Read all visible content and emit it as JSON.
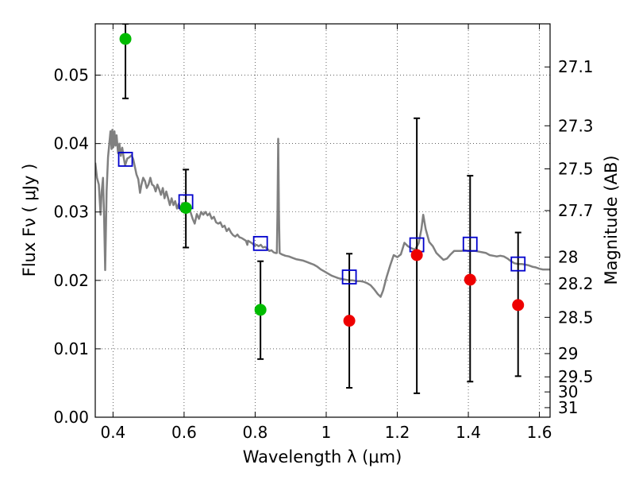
{
  "chart_data": {
    "type": "scatter",
    "xlabel": "Wavelength  λ (μm)",
    "ylabel": "Flux  Fν  ( μJy )",
    "ylabel_right": "Magnitude (AB)",
    "xlim": [
      0.35,
      1.63
    ],
    "ylim": [
      0.0,
      0.0575
    ],
    "grid": true,
    "x_ticks": [
      0.4,
      0.6,
      0.8,
      1.0,
      1.2,
      1.4,
      1.6
    ],
    "x_tick_labels": [
      "0.4",
      "0.6",
      "0.8",
      "1",
      "1.2",
      "1.4",
      "1.6"
    ],
    "y_ticks": [
      0.0,
      0.01,
      0.02,
      0.03,
      0.04,
      0.05
    ],
    "y_tick_labels": [
      "0.00",
      "0.01",
      "0.02",
      "0.03",
      "0.04",
      "0.05"
    ],
    "right_ticks": [
      {
        "label": "27.1",
        "flux": 0.0512
      },
      {
        "label": "27.3",
        "flux": 0.0426
      },
      {
        "label": "27.5",
        "flux": 0.0363
      },
      {
        "label": "27.7",
        "flux": 0.0302
      },
      {
        "label": "28",
        "flux": 0.0234
      },
      {
        "label": "28.2",
        "flux": 0.0195
      },
      {
        "label": "28.5",
        "flux": 0.0146
      },
      {
        "label": "29",
        "flux": 0.0093
      },
      {
        "label": "29.5",
        "flux": 0.0059
      },
      {
        "label": "30",
        "flux": 0.0037
      },
      {
        "label": "31",
        "flux": 0.0014
      }
    ],
    "model_spectrum": {
      "color": "#808080",
      "points": [
        [
          0.35,
          0.0372
        ],
        [
          0.355,
          0.035
        ],
        [
          0.36,
          0.034
        ],
        [
          0.365,
          0.0296
        ],
        [
          0.368,
          0.033
        ],
        [
          0.372,
          0.035
        ],
        [
          0.375,
          0.029
        ],
        [
          0.378,
          0.0215
        ],
        [
          0.382,
          0.033
        ],
        [
          0.386,
          0.038
        ],
        [
          0.39,
          0.0402
        ],
        [
          0.393,
          0.0418
        ],
        [
          0.396,
          0.0392
        ],
        [
          0.398,
          0.042
        ],
        [
          0.401,
          0.0395
        ],
        [
          0.404,
          0.0418
        ],
        [
          0.407,
          0.0397
        ],
        [
          0.41,
          0.0412
        ],
        [
          0.414,
          0.0386
        ],
        [
          0.418,
          0.04
        ],
        [
          0.422,
          0.0382
        ],
        [
          0.426,
          0.0394
        ],
        [
          0.43,
          0.038
        ],
        [
          0.434,
          0.0368
        ],
        [
          0.44,
          0.0378
        ],
        [
          0.446,
          0.038
        ],
        [
          0.452,
          0.0383
        ],
        [
          0.457,
          0.0377
        ],
        [
          0.462,
          0.0365
        ],
        [
          0.466,
          0.0355
        ],
        [
          0.471,
          0.0348
        ],
        [
          0.476,
          0.0328
        ],
        [
          0.48,
          0.034
        ],
        [
          0.485,
          0.035
        ],
        [
          0.49,
          0.0345
        ],
        [
          0.495,
          0.0335
        ],
        [
          0.5,
          0.034
        ],
        [
          0.505,
          0.035
        ],
        [
          0.51,
          0.034
        ],
        [
          0.515,
          0.0338
        ],
        [
          0.52,
          0.033
        ],
        [
          0.525,
          0.034
        ],
        [
          0.53,
          0.0333
        ],
        [
          0.535,
          0.0325
        ],
        [
          0.54,
          0.0335
        ],
        [
          0.545,
          0.032
        ],
        [
          0.55,
          0.033
        ],
        [
          0.555,
          0.032
        ],
        [
          0.56,
          0.031
        ],
        [
          0.565,
          0.032
        ],
        [
          0.57,
          0.031
        ],
        [
          0.575,
          0.0316
        ],
        [
          0.58,
          0.0305
        ],
        [
          0.585,
          0.0312
        ],
        [
          0.59,
          0.0303
        ],
        [
          0.595,
          0.0313
        ],
        [
          0.6,
          0.0307
        ],
        [
          0.606,
          0.0312
        ],
        [
          0.612,
          0.0304
        ],
        [
          0.618,
          0.03
        ],
        [
          0.624,
          0.029
        ],
        [
          0.63,
          0.0283
        ],
        [
          0.636,
          0.0297
        ],
        [
          0.642,
          0.029
        ],
        [
          0.648,
          0.03
        ],
        [
          0.654,
          0.0296
        ],
        [
          0.66,
          0.03
        ],
        [
          0.666,
          0.0295
        ],
        [
          0.672,
          0.0298
        ],
        [
          0.678,
          0.029
        ],
        [
          0.684,
          0.0293
        ],
        [
          0.69,
          0.0285
        ],
        [
          0.696,
          0.0283
        ],
        [
          0.702,
          0.0285
        ],
        [
          0.708,
          0.0278
        ],
        [
          0.714,
          0.028
        ],
        [
          0.72,
          0.0272
        ],
        [
          0.726,
          0.0276
        ],
        [
          0.732,
          0.027
        ],
        [
          0.738,
          0.0266
        ],
        [
          0.744,
          0.0264
        ],
        [
          0.75,
          0.0267
        ],
        [
          0.756,
          0.0263
        ],
        [
          0.762,
          0.0262
        ],
        [
          0.768,
          0.026
        ],
        [
          0.774,
          0.0258
        ],
        [
          0.778,
          0.0252
        ],
        [
          0.78,
          0.0258
        ],
        [
          0.786,
          0.0256
        ],
        [
          0.792,
          0.0254
        ],
        [
          0.798,
          0.0251
        ],
        [
          0.804,
          0.0252
        ],
        [
          0.81,
          0.025
        ],
        [
          0.816,
          0.0252
        ],
        [
          0.822,
          0.0248
        ],
        [
          0.828,
          0.0249
        ],
        [
          0.834,
          0.0246
        ],
        [
          0.84,
          0.0243
        ],
        [
          0.846,
          0.0244
        ],
        [
          0.852,
          0.0241
        ],
        [
          0.858,
          0.024
        ],
        [
          0.861,
          0.024
        ],
        [
          0.863,
          0.03
        ],
        [
          0.865,
          0.0407
        ],
        [
          0.867,
          0.03
        ],
        [
          0.869,
          0.024
        ],
        [
          0.875,
          0.0238
        ],
        [
          0.885,
          0.0236
        ],
        [
          0.895,
          0.0235
        ],
        [
          0.905,
          0.0233
        ],
        [
          0.915,
          0.0231
        ],
        [
          0.925,
          0.023
        ],
        [
          0.935,
          0.0229
        ],
        [
          0.945,
          0.0227
        ],
        [
          0.955,
          0.0225
        ],
        [
          0.965,
          0.0223
        ],
        [
          0.975,
          0.022
        ],
        [
          0.985,
          0.0216
        ],
        [
          0.995,
          0.0213
        ],
        [
          1.005,
          0.021
        ],
        [
          1.015,
          0.0207
        ],
        [
          1.025,
          0.0205
        ],
        [
          1.035,
          0.0203
        ],
        [
          1.045,
          0.0202
        ],
        [
          1.055,
          0.0201
        ],
        [
          1.065,
          0.02
        ],
        [
          1.075,
          0.02
        ],
        [
          1.085,
          0.0199
        ],
        [
          1.095,
          0.0199
        ],
        [
          1.105,
          0.0198
        ],
        [
          1.115,
          0.0196
        ],
        [
          1.125,
          0.0193
        ],
        [
          1.135,
          0.0187
        ],
        [
          1.145,
          0.018
        ],
        [
          1.153,
          0.0176
        ],
        [
          1.16,
          0.0185
        ],
        [
          1.17,
          0.0205
        ],
        [
          1.18,
          0.0222
        ],
        [
          1.19,
          0.0237
        ],
        [
          1.2,
          0.0234
        ],
        [
          1.21,
          0.0238
        ],
        [
          1.22,
          0.0255
        ],
        [
          1.23,
          0.025
        ],
        [
          1.24,
          0.0247
        ],
        [
          1.25,
          0.0245
        ],
        [
          1.26,
          0.0254
        ],
        [
          1.268,
          0.0275
        ],
        [
          1.273,
          0.0296
        ],
        [
          1.28,
          0.0275
        ],
        [
          1.29,
          0.0256
        ],
        [
          1.3,
          0.025
        ],
        [
          1.31,
          0.024
        ],
        [
          1.32,
          0.0235
        ],
        [
          1.33,
          0.023
        ],
        [
          1.34,
          0.0232
        ],
        [
          1.35,
          0.0238
        ],
        [
          1.36,
          0.0243
        ],
        [
          1.37,
          0.0243
        ],
        [
          1.38,
          0.0243
        ],
        [
          1.39,
          0.0244
        ],
        [
          1.4,
          0.0243
        ],
        [
          1.41,
          0.0243
        ],
        [
          1.42,
          0.0243
        ],
        [
          1.43,
          0.0242
        ],
        [
          1.44,
          0.0241
        ],
        [
          1.45,
          0.024
        ],
        [
          1.46,
          0.0237
        ],
        [
          1.47,
          0.0236
        ],
        [
          1.48,
          0.0235
        ],
        [
          1.49,
          0.0236
        ],
        [
          1.5,
          0.0235
        ],
        [
          1.51,
          0.0232
        ],
        [
          1.52,
          0.0228
        ],
        [
          1.53,
          0.0225
        ],
        [
          1.54,
          0.0224
        ],
        [
          1.55,
          0.0224
        ],
        [
          1.56,
          0.0223
        ],
        [
          1.57,
          0.0222
        ],
        [
          1.58,
          0.022
        ],
        [
          1.59,
          0.0219
        ],
        [
          1.6,
          0.0217
        ],
        [
          1.61,
          0.0216
        ],
        [
          1.62,
          0.0216
        ],
        [
          1.63,
          0.0216
        ]
      ]
    },
    "model_photometry": {
      "color": "#0000cc",
      "points": [
        [
          0.435,
          0.0377
        ],
        [
          0.605,
          0.0315
        ],
        [
          0.815,
          0.0254
        ],
        [
          1.065,
          0.0205
        ],
        [
          1.255,
          0.0252
        ],
        [
          1.405,
          0.0253
        ],
        [
          1.54,
          0.0224
        ]
      ]
    },
    "observed_detections": {
      "color": "#00bb00",
      "points": [
        {
          "x": 0.435,
          "y": 0.0553,
          "ylo": 0.0466,
          "yhi": 0.0575
        },
        {
          "x": 0.605,
          "y": 0.0306,
          "ylo": 0.0248,
          "yhi": 0.0362
        },
        {
          "x": 0.815,
          "y": 0.0157,
          "ylo": 0.0085,
          "yhi": 0.0228
        }
      ]
    },
    "observed_nondetections": {
      "color": "#ee0000",
      "points": [
        {
          "x": 1.065,
          "y": 0.0141,
          "ylo": 0.0043,
          "yhi": 0.0239
        },
        {
          "x": 1.255,
          "y": 0.0237,
          "ylo": 0.0035,
          "yhi": 0.0437
        },
        {
          "x": 1.405,
          "y": 0.0201,
          "ylo": 0.0052,
          "yhi": 0.0353
        },
        {
          "x": 1.54,
          "y": 0.0164,
          "ylo": 0.006,
          "yhi": 0.027
        }
      ]
    }
  }
}
